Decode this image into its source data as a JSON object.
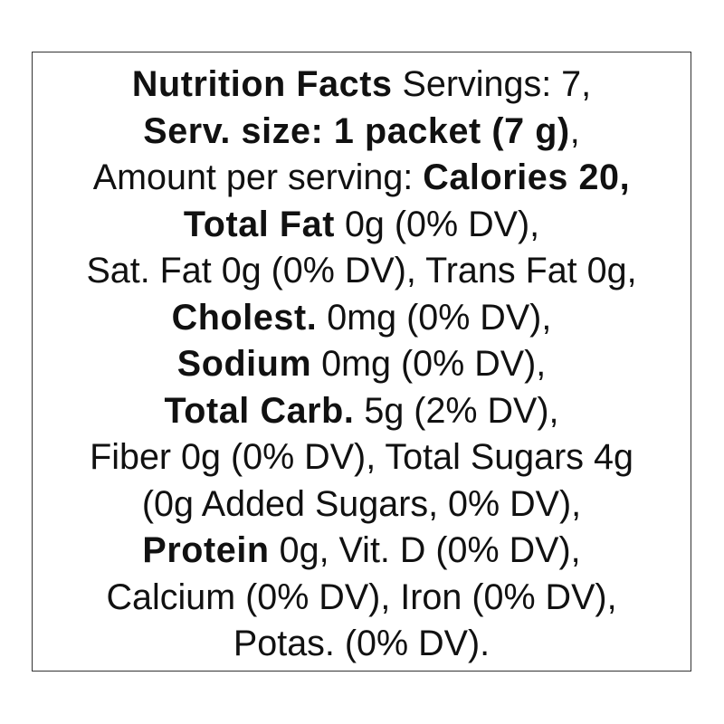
{
  "lines": [
    [
      {
        "text": "Nutrition Facts",
        "bold": true
      },
      {
        "text": " Servings: 7,",
        "bold": false
      }
    ],
    [
      {
        "text": "Serv. size: 1 packet (7 g)",
        "bold": true
      },
      {
        "text": ",",
        "bold": false
      }
    ],
    [
      {
        "text": "Amount per serving: ",
        "bold": false
      },
      {
        "text": "Calories 20,",
        "bold": true
      }
    ],
    [
      {
        "text": "Total Fat",
        "bold": true
      },
      {
        "text": " 0g (0% DV),",
        "bold": false
      }
    ],
    [
      {
        "text": "Sat. Fat 0g (0% DV), Trans Fat 0g,",
        "bold": false
      }
    ],
    [
      {
        "text": "Cholest.",
        "bold": true
      },
      {
        "text": " 0mg (0% DV),",
        "bold": false
      }
    ],
    [
      {
        "text": "Sodium",
        "bold": true
      },
      {
        "text": " 0mg (0% DV),",
        "bold": false
      }
    ],
    [
      {
        "text": "Total Carb.",
        "bold": true
      },
      {
        "text": " 5g (2% DV),",
        "bold": false
      }
    ],
    [
      {
        "text": "Fiber 0g (0% DV), Total Sugars 4g",
        "bold": false
      }
    ],
    [
      {
        "text": "(0g Added Sugars, 0% DV),",
        "bold": false
      }
    ],
    [
      {
        "text": "Protein",
        "bold": true
      },
      {
        "text": " 0g, Vit. D (0% DV),",
        "bold": false
      }
    ],
    [
      {
        "text": "Calcium (0% DV), Iron (0% DV),",
        "bold": false
      }
    ],
    [
      {
        "text": "Potas. (0% DV).",
        "bold": false
      }
    ]
  ]
}
